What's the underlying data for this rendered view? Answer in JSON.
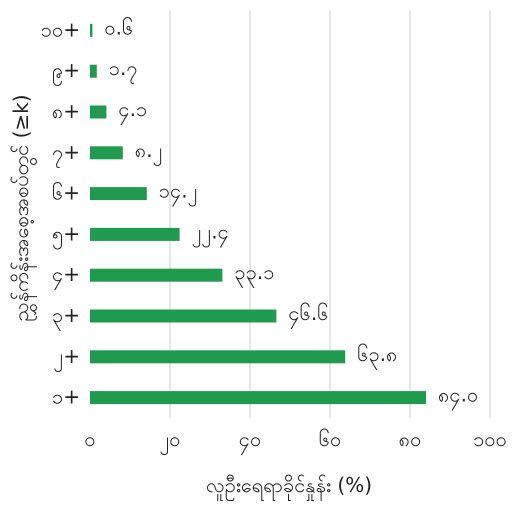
{
  "chart_data": {
    "type": "bar",
    "orientation": "horizontal",
    "categories": [
      "၁+",
      "၂+",
      "၃+",
      "၄+",
      "၅+",
      "၆+",
      "၇+",
      "၈+",
      "၉+",
      "၁၀+"
    ],
    "values": [
      84.0,
      63.8,
      46.6,
      33.1,
      22.4,
      14.2,
      8.2,
      4.1,
      1.7,
      0.6
    ],
    "data_labels": [
      "၈၄.၀",
      "၆၃.၈",
      "၄၆.၆",
      "၃၃.၁",
      "၂၂.၄",
      "၁၄.၂",
      "၈.၂",
      "၄.၁",
      "၁.၇",
      "၀.၆"
    ],
    "xlim": [
      0,
      100
    ],
    "xticks": [
      0,
      20,
      40,
      60,
      80,
      100
    ],
    "xtick_labels": [
      "၀",
      "၂၀",
      "၄၀",
      "၆၀",
      "၈၀",
      "၁၀၀"
    ],
    "xlabel": "လူဦးရေရာခိုင်နှုန်း (%)",
    "ylabel": "ညွှန်ကိန်းအစေ့အစပ်တွင် (≥k)",
    "grid": true,
    "bar_color": "#1f9a4f"
  }
}
